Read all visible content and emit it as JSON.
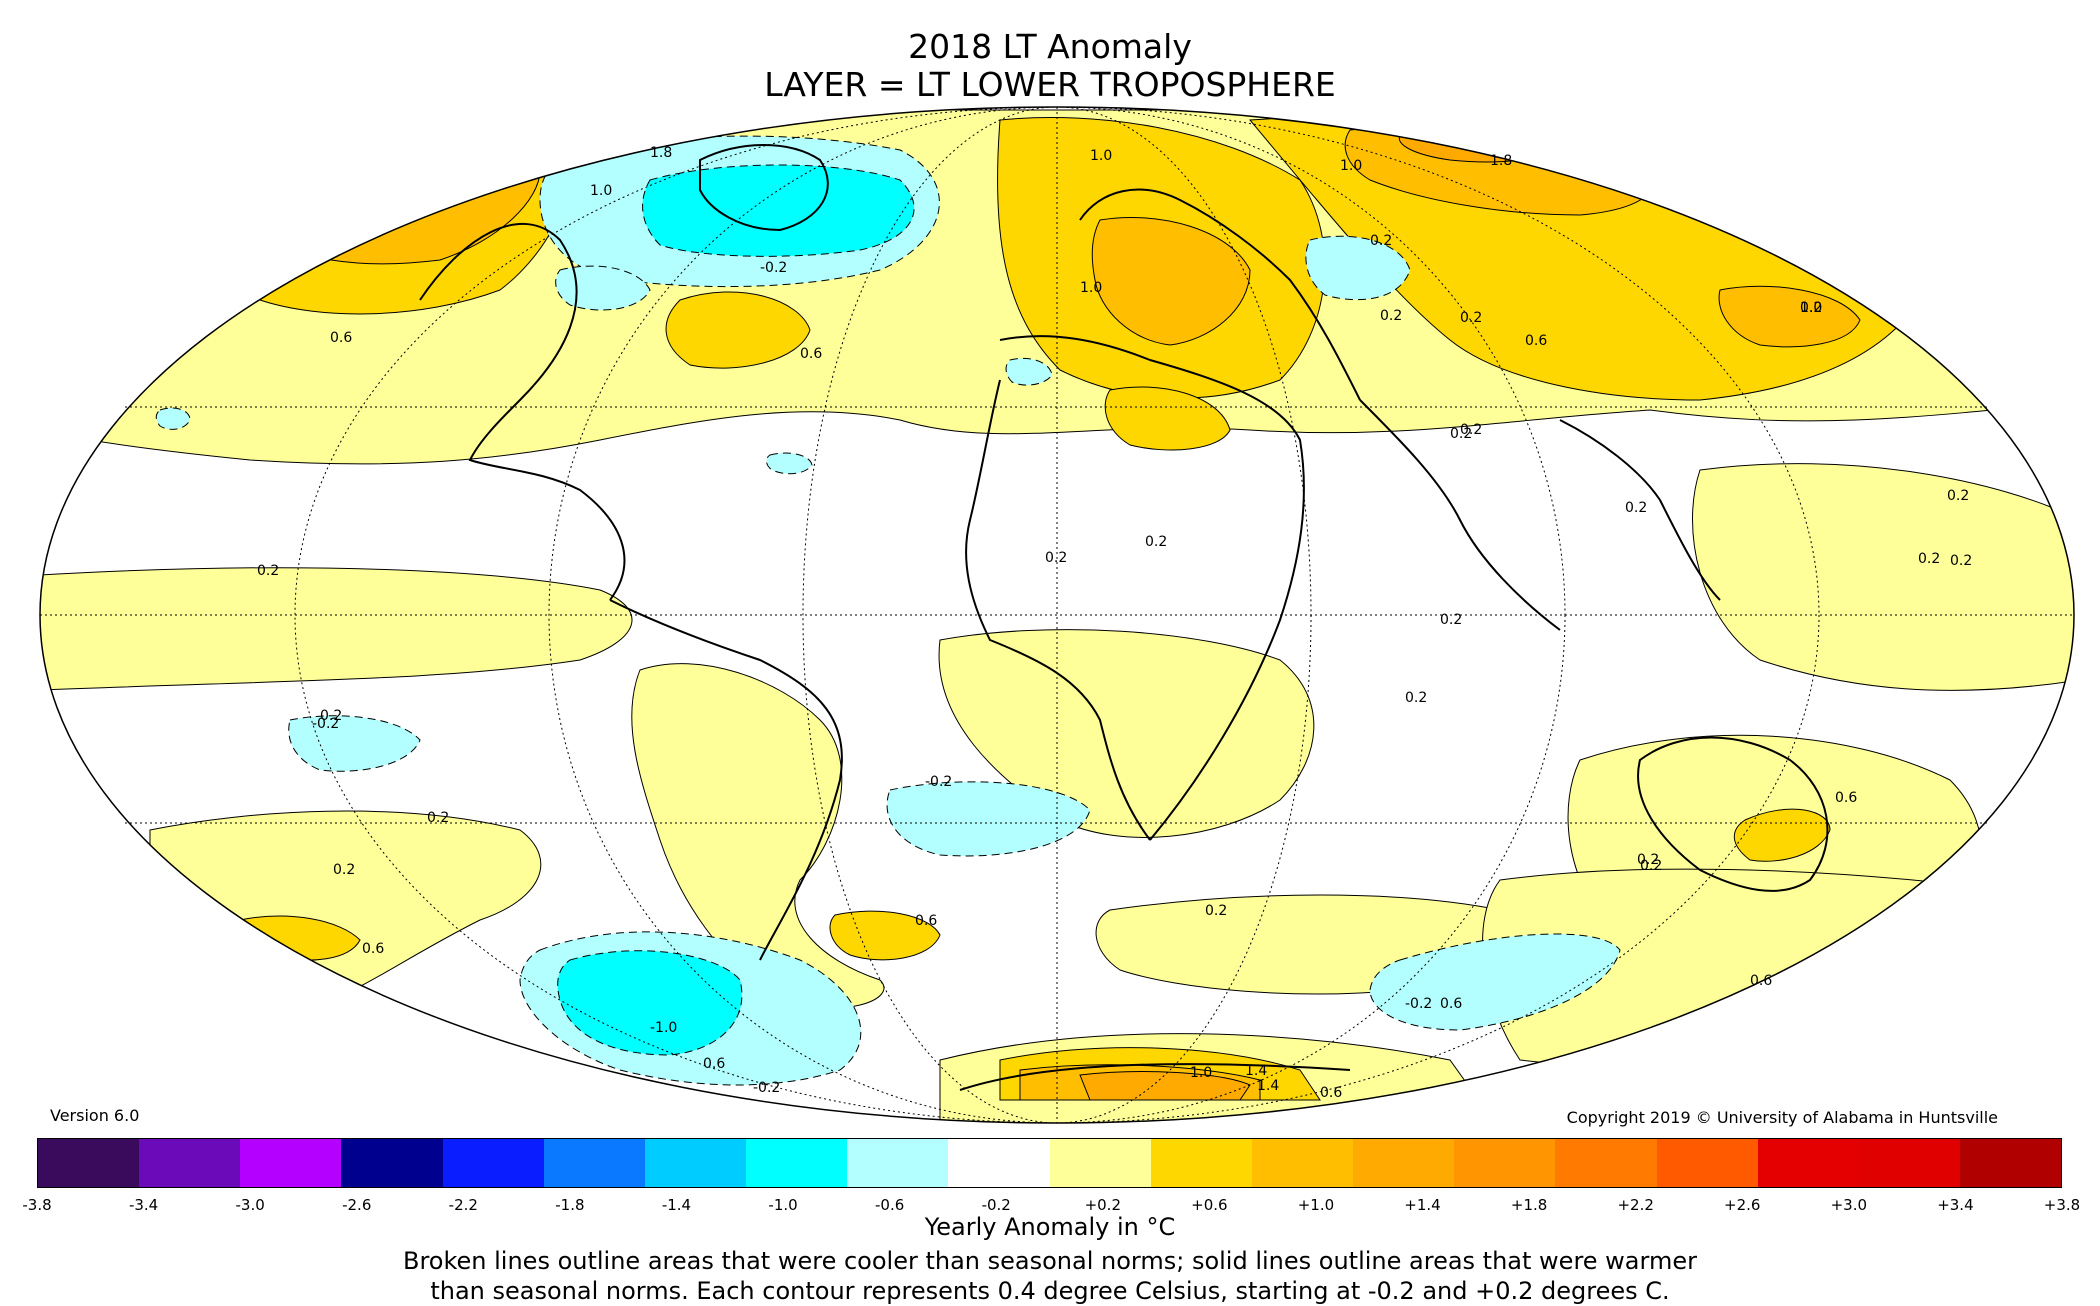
{
  "title": "2018 LT Anomaly",
  "subtitle": "LAYER = LT LOWER TROPOSPHERE",
  "version": "Version 6.0",
  "copyright": "Copyright 2019 © University of Alabama in Huntsville",
  "colorbar": {
    "title": "Yearly Anomaly in °C",
    "ticks": [
      "-3.8",
      "-3.4",
      "-3.0",
      "-2.6",
      "-2.2",
      "-1.8",
      "-1.4",
      "-1.0",
      "-0.6",
      "-0.2",
      "+0.2",
      "+0.6",
      "+1.0",
      "+1.4",
      "+1.8",
      "+2.2",
      "+2.6",
      "+3.0",
      "+3.4",
      "+3.8"
    ],
    "colors": [
      "#3a0a5c",
      "#6a0ab8",
      "#b400ff",
      "#00008f",
      "#0a1dff",
      "#0a78ff",
      "#00ccff",
      "#00ffff",
      "#b3ffff",
      "#ffffff",
      "#ffff99",
      "#ffd700",
      "#ffbf00",
      "#ffaa00",
      "#ff9500",
      "#ff7a00",
      "#ff5a00",
      "#e40000",
      "#e00000",
      "#b00000"
    ]
  },
  "note_line1": "Broken lines outline areas that were cooler than seasonal norms; solid lines outline areas that were warmer",
  "note_line2": "than seasonal norms. Each contour represents 0.4 degree Celsius, starting at -0.2 and +0.2 degrees C.",
  "map_colors": {
    "ocean_base": "#ffffff",
    "warm_light": "#ffff99",
    "warm_mid": "#ffd700",
    "warm_strong": "#ffbf00",
    "warm_high": "#ffaa00",
    "warm_peak": "#ff9500",
    "cool_light": "#b3ffff",
    "cool_strong": "#00ffff"
  },
  "contour_labels": [
    "1.8",
    "1.0",
    "1.0",
    "1.8",
    "1.0",
    "-0.2",
    "0.2",
    "0.2",
    "0.2",
    "0.6",
    "0.6",
    "0.6",
    "1.0",
    "1.0",
    "0.2",
    "0.2",
    "0.2",
    "0.2",
    "0.2",
    "0.2",
    "0.2",
    "0.2",
    "0.2",
    "-0.2",
    "0.2",
    "-0.2",
    "0.2",
    "0.2",
    "0.6",
    "0.2",
    "0.6",
    "0.6",
    "0.6",
    "-1.0",
    "0.6",
    "-0.2",
    "0.2",
    "-0.2",
    "1.4",
    "1.0",
    "1.4",
    "0.6",
    "0.2",
    "0.6",
    "0.2",
    "0.2",
    "0.2"
  ]
}
